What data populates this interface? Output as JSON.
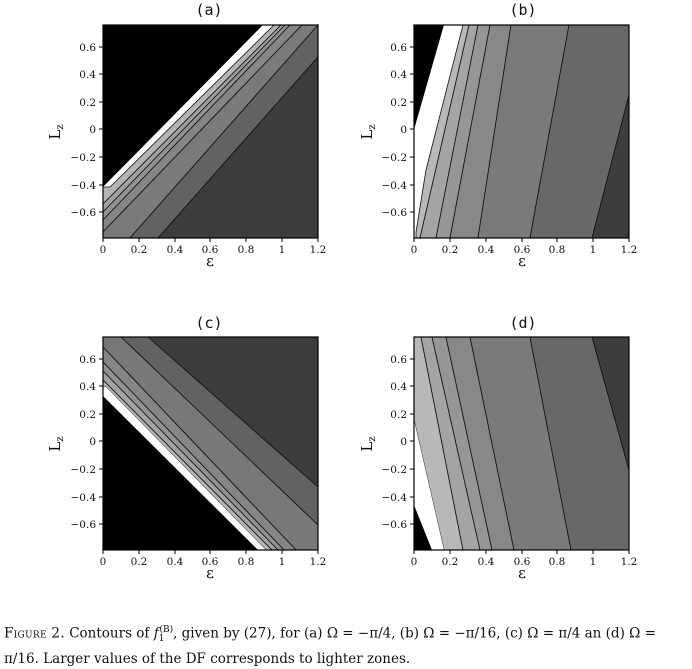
{
  "figure": {
    "panels": [
      {
        "id": "a",
        "title": "(a)",
        "xlabel": "ε",
        "ylabel": "L",
        "ylabel_sub": "z"
      },
      {
        "id": "b",
        "title": "(b)",
        "xlabel": "ε",
        "ylabel": "L",
        "ylabel_sub": "z"
      },
      {
        "id": "c",
        "title": "(c)",
        "xlabel": "ε",
        "ylabel": "L",
        "ylabel_sub": "z"
      },
      {
        "id": "d",
        "title": "(d)",
        "xlabel": "ε",
        "ylabel": "L",
        "ylabel_sub": "z"
      }
    ],
    "xticks": [
      "0",
      "0.2",
      "0.4",
      "0.6",
      "0.8",
      "1",
      "1.2"
    ],
    "yticks": [
      "0.6",
      "0.4",
      "0.2",
      "0",
      "−0.2",
      "−0.4",
      "−0.6"
    ]
  },
  "chart_data": [
    {
      "type": "contour",
      "title": "(a)",
      "xlabel": "ε",
      "ylabel": "Lz",
      "xlim": [
        0,
        1.2
      ],
      "ylim": [
        -0.8,
        0.8
      ],
      "omega": "−π/4",
      "lighter": "larger DF"
    },
    {
      "type": "contour",
      "title": "(b)",
      "xlabel": "ε",
      "ylabel": "Lz",
      "xlim": [
        0,
        1.2
      ],
      "ylim": [
        -0.8,
        0.8
      ],
      "omega": "−π/16",
      "lighter": "larger DF"
    },
    {
      "type": "contour",
      "title": "(c)",
      "xlabel": "ε",
      "ylabel": "Lz",
      "xlim": [
        0,
        1.2
      ],
      "ylim": [
        -0.8,
        0.8
      ],
      "omega": "π/4",
      "lighter": "larger DF"
    },
    {
      "type": "contour",
      "title": "(d)",
      "xlabel": "ε",
      "ylabel": "Lz",
      "xlim": [
        0,
        1.2
      ],
      "ylim": [
        -0.8,
        0.8
      ],
      "omega": "π/16",
      "lighter": "larger DF"
    }
  ],
  "caption": {
    "label": "Figure 2.",
    "text_1": " Contours of ",
    "f": "f",
    "f_sub": "1",
    "f_sup": "(B)",
    "text_2": ", given by (27), for (a) Ω = −π/4, (b) Ω = −π/16, (c) Ω = π/4 an (d) Ω = π/16. Larger values of the DF corresponds to lighter zones."
  }
}
